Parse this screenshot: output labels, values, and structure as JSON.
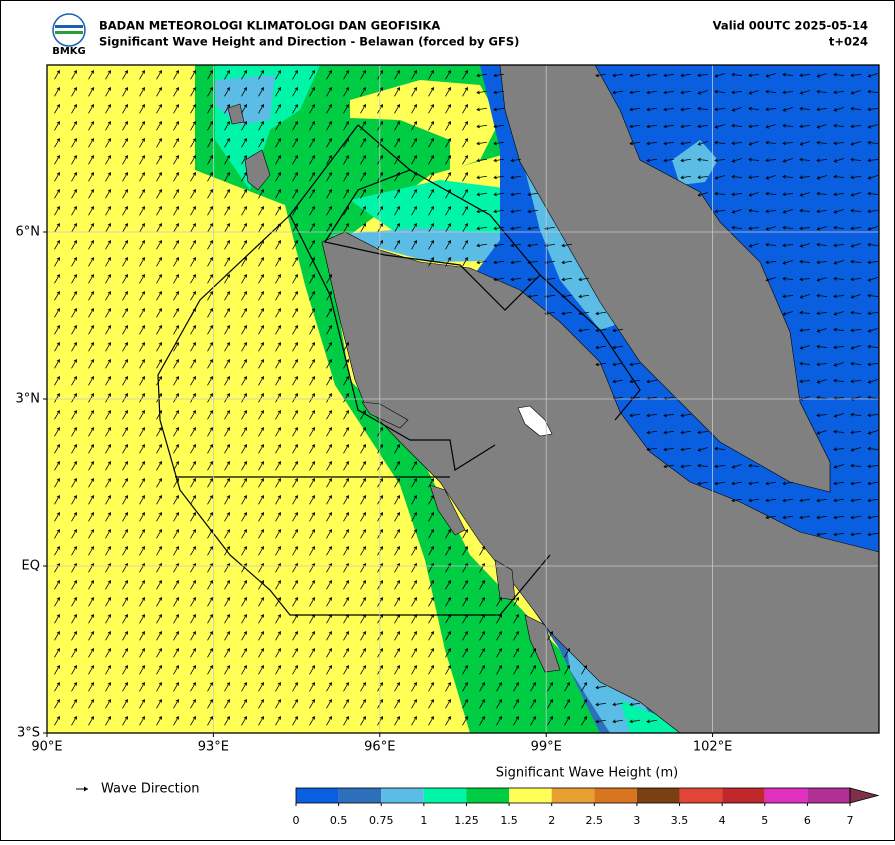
{
  "chart_data": {
    "type": "map",
    "agency": "BADAN METEOROLOGI KLIMATOLOGI DAN GEOFISIKA",
    "title": "Significant Wave Height and Direction - Belawan (forced by GFS)",
    "valid": "Valid 00UTC 2025-05-14",
    "lead": "t+024",
    "logo_text": "BMKG",
    "xlim": [
      90,
      105
    ],
    "ylim": [
      -3,
      9
    ],
    "xticks": [
      {
        "value": 90,
        "label": "90°E"
      },
      {
        "value": 93,
        "label": "93°E"
      },
      {
        "value": 96,
        "label": "96°E"
      },
      {
        "value": 99,
        "label": "99°E"
      },
      {
        "value": 102,
        "label": "102°E"
      }
    ],
    "yticks": [
      {
        "value": -3,
        "label": "3°S"
      },
      {
        "value": 0,
        "label": "EQ"
      },
      {
        "value": 3,
        "label": "3°N"
      },
      {
        "value": 6,
        "label": "6°N"
      }
    ],
    "grid": true,
    "land_color": "#808080",
    "colorbar": {
      "label": "Significant Wave Height (m)",
      "levels": [
        0,
        0.5,
        0.75,
        1,
        1.25,
        1.5,
        2,
        2.5,
        3,
        3.5,
        4,
        5,
        6,
        7
      ],
      "colors": [
        "#0a5fe0",
        "#2e6fbc",
        "#5bbde6",
        "#00f5a8",
        "#00cc44",
        "#ffff55",
        "#e8a030",
        "#d87520",
        "#7a4012",
        "#e04535",
        "#c0282c",
        "#e030c0",
        "#b03095",
        "#80304a"
      ],
      "extend": "max"
    },
    "legend": {
      "label": "Wave Direction"
    }
  }
}
